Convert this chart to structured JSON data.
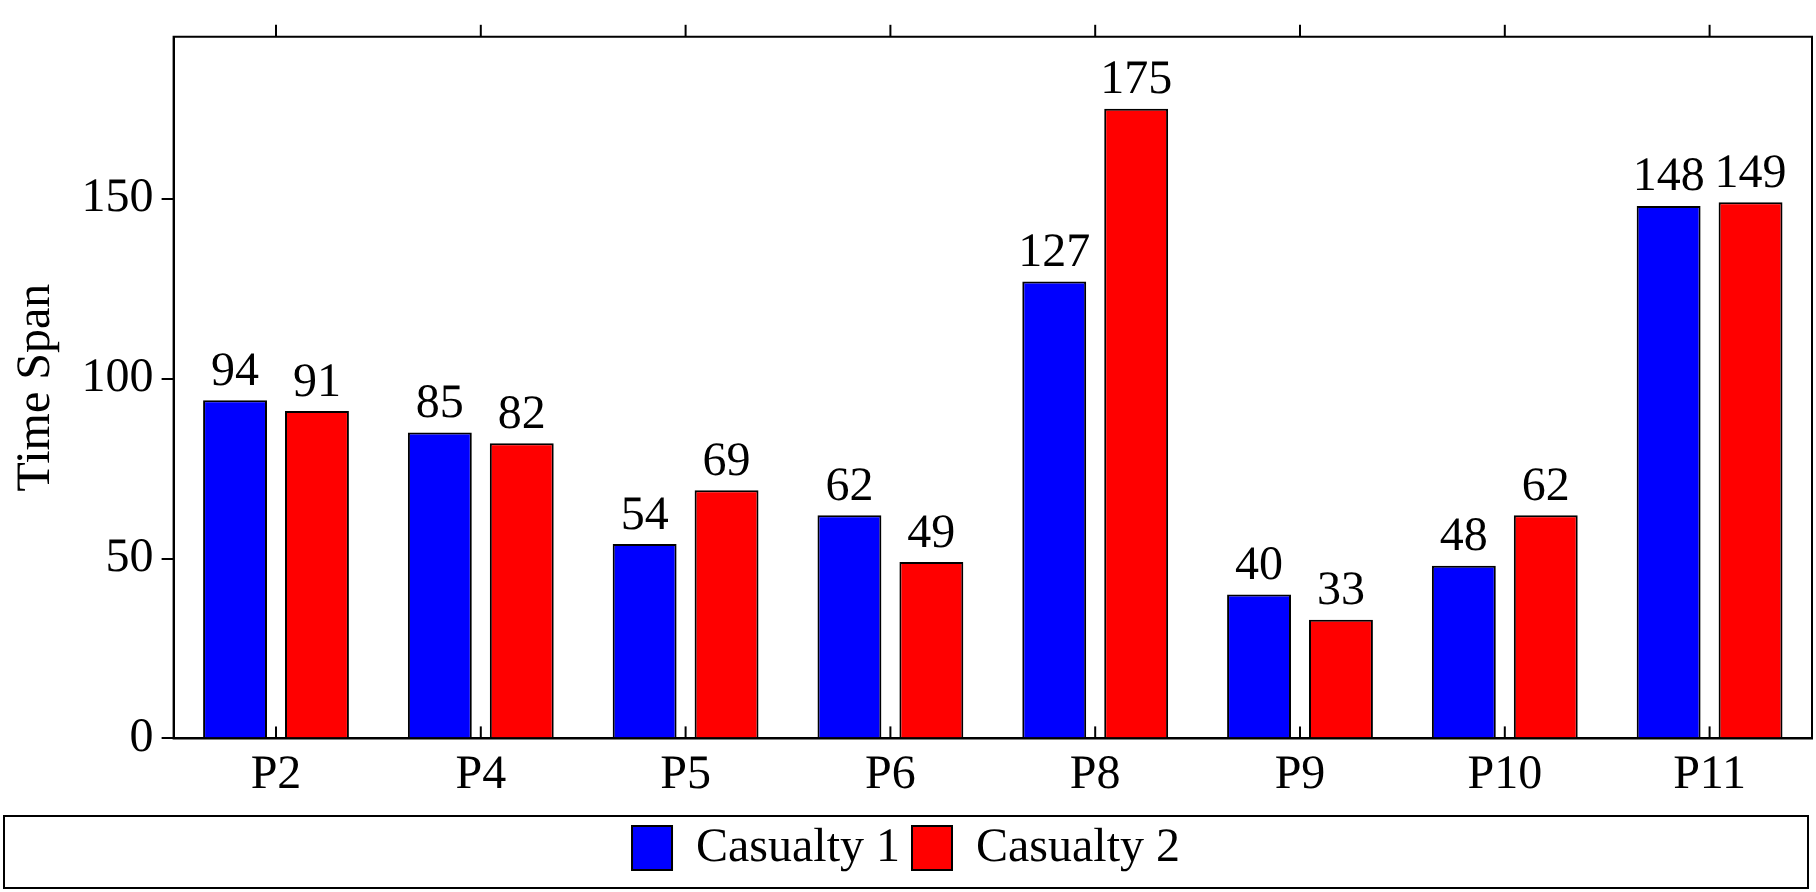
{
  "chart_data": {
    "type": "bar",
    "ylabel": "Time Span",
    "categories": [
      "P2",
      "P4",
      "P5",
      "P6",
      "P8",
      "P9",
      "P10",
      "P11"
    ],
    "series": [
      {
        "name": "Casualty 1",
        "color": "#0000ff",
        "values": [
          94,
          85,
          54,
          62,
          127,
          40,
          48,
          148
        ]
      },
      {
        "name": "Casualty 2",
        "color": "#ff0000",
        "values": [
          91,
          82,
          69,
          49,
          175,
          33,
          62,
          149
        ]
      }
    ],
    "ylim": [
      0,
      195
    ],
    "yticks": [
      0,
      50,
      100,
      150
    ],
    "grid": false,
    "legend": "bottom",
    "data_labels": true
  }
}
